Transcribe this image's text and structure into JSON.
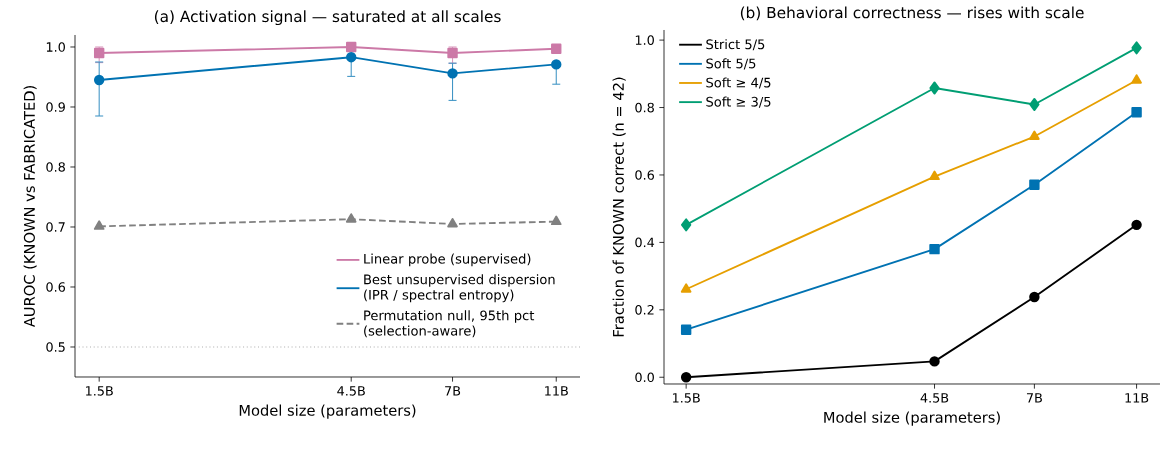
{
  "chart_data": [
    {
      "type": "line",
      "title": "(a) Activation signal — saturated at all scales",
      "xlabel": "Model size (parameters)",
      "ylabel": "AUROC (KNOWN vs FABRICATED)",
      "x": [
        1.5,
        4.5,
        7,
        11
      ],
      "log": "x",
      "xlim": [
        1.35,
        12.2
      ],
      "ylim": [
        0.45,
        1.02
      ],
      "xticks": [
        {
          "value": 1.5,
          "label": "1.5B"
        },
        {
          "value": 4.5,
          "label": "4.5B"
        },
        {
          "value": 7,
          "label": "7B"
        },
        {
          "value": 11,
          "label": "11B"
        }
      ],
      "yticks": [
        {
          "value": 0.5,
          "label": "0.5"
        },
        {
          "value": 0.6,
          "label": "0.6"
        },
        {
          "value": 0.7,
          "label": "0.7"
        },
        {
          "value": 0.8,
          "label": "0.8"
        },
        {
          "value": 0.9,
          "label": "0.9"
        },
        {
          "value": 1.0,
          "label": "1.0"
        }
      ],
      "legend": "bottom right",
      "ref_lines": [
        {
          "axis": "y",
          "value": 0.5,
          "color": "#b0b0b0",
          "line_style": "dotted"
        }
      ],
      "series": [
        {
          "name": "Linear probe (supervised)",
          "color": "#cc79a7",
          "marker": "square",
          "line_style": "solid",
          "values": [
            0.99,
            1.0,
            0.99,
            0.997
          ],
          "errors": [
            [
              0.974,
              1.0
            ],
            null,
            [
              0.973,
              1.0
            ],
            null
          ]
        },
        {
          "name": "Best unsupervised dispersion (IPR / spectral entropy)",
          "color": "#0072b2",
          "marker": "circle",
          "line_style": "solid",
          "values": [
            0.945,
            0.983,
            0.956,
            0.971
          ],
          "errors": [
            [
              0.885,
              0.975
            ],
            [
              0.951,
              0.983
            ],
            [
              0.911,
              0.973
            ],
            [
              0.938,
              0.971
            ]
          ]
        },
        {
          "name": "Permutation null, 95th pct (selection-aware)",
          "color": "#808080",
          "marker": "triangle",
          "line_style": "dashed",
          "values": [
            0.701,
            0.713,
            0.705,
            0.709
          ]
        }
      ]
    },
    {
      "type": "line",
      "title": "(b) Behavioral correctness — rises with scale",
      "xlabel": "Model size (parameters)",
      "ylabel": "Fraction of KNOWN correct (n = 42)",
      "x": [
        1.5,
        4.5,
        7,
        11
      ],
      "log": "x",
      "xlim": [
        1.36,
        12.2
      ],
      "ylim": [
        -0.02,
        1.03
      ],
      "xticks": [
        {
          "value": 1.5,
          "label": "1.5B"
        },
        {
          "value": 4.5,
          "label": "4.5B"
        },
        {
          "value": 7,
          "label": "7B"
        },
        {
          "value": 11,
          "label": "11B"
        }
      ],
      "yticks": [
        {
          "value": 0.0,
          "label": "0.0"
        },
        {
          "value": 0.2,
          "label": "0.2"
        },
        {
          "value": 0.4,
          "label": "0.4"
        },
        {
          "value": 0.6,
          "label": "0.6"
        },
        {
          "value": 0.8,
          "label": "0.8"
        },
        {
          "value": 1.0,
          "label": "1.0"
        }
      ],
      "legend": "top left",
      "series": [
        {
          "name": "Strict 5/5",
          "color": "#000000",
          "marker": "circle",
          "line_style": "solid",
          "values": [
            0.0,
            0.047,
            0.238,
            0.452
          ]
        },
        {
          "name": "Soft 5/5",
          "color": "#0072b2",
          "marker": "square",
          "line_style": "solid",
          "values": [
            0.141,
            0.38,
            0.571,
            0.786
          ]
        },
        {
          "name": "Soft ≥ 4/5",
          "color": "#e69f00",
          "marker": "triangle",
          "line_style": "solid",
          "values": [
            0.261,
            0.595,
            0.714,
            0.881
          ]
        },
        {
          "name": "Soft ≥ 3/5",
          "color": "#009e73",
          "marker": "diamond",
          "line_style": "solid",
          "values": [
            0.452,
            0.858,
            0.809,
            0.977
          ]
        }
      ]
    }
  ]
}
